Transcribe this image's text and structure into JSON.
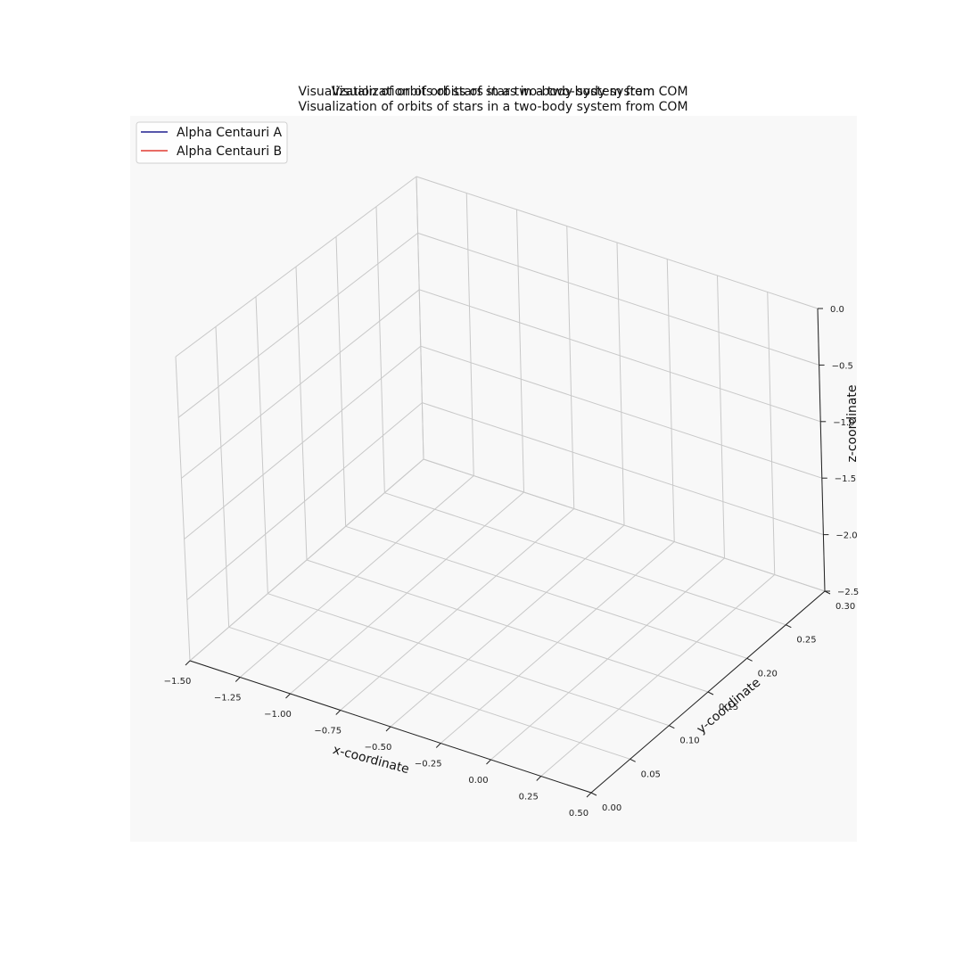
{
  "chart_data": {
    "type": "line",
    "projection": "3d",
    "title_lines": [
      "Visualization of orbits of stars in a two-body system",
      "Visualization of orbits of stars in a two-body system from COM",
      "Visualization of orbits of stars in a two-body system from COM"
    ],
    "xlabel": "x-coordinate",
    "ylabel": "y-coordinate",
    "zlabel": "z-coordinate",
    "x_ticks": [
      "−1.50",
      "−1.25",
      "−1.00",
      "−0.75",
      "−0.50",
      "−0.25",
      "0.00",
      "0.25",
      "0.50"
    ],
    "y_ticks": [
      "0.00",
      "0.05",
      "0.10",
      "0.15",
      "0.20",
      "0.25",
      "0.30"
    ],
    "z_ticks": [
      "0.0",
      "−0.5",
      "−1.0",
      "−1.5",
      "−2.0",
      "−2.5"
    ],
    "xlim": [
      -1.5,
      0.5
    ],
    "ylim": [
      0.0,
      0.3
    ],
    "zlim": [
      -2.5,
      0.0
    ],
    "grid": true,
    "legend_position": "upper-left",
    "series": [
      {
        "name": "Alpha Centauri A",
        "color": "#1f1f8f",
        "points": []
      },
      {
        "name": "Alpha Centauri B",
        "color": "#e03c31",
        "points": []
      }
    ],
    "pane_color": "#f8f8f8",
    "grid_color": "#c8c8c8"
  }
}
